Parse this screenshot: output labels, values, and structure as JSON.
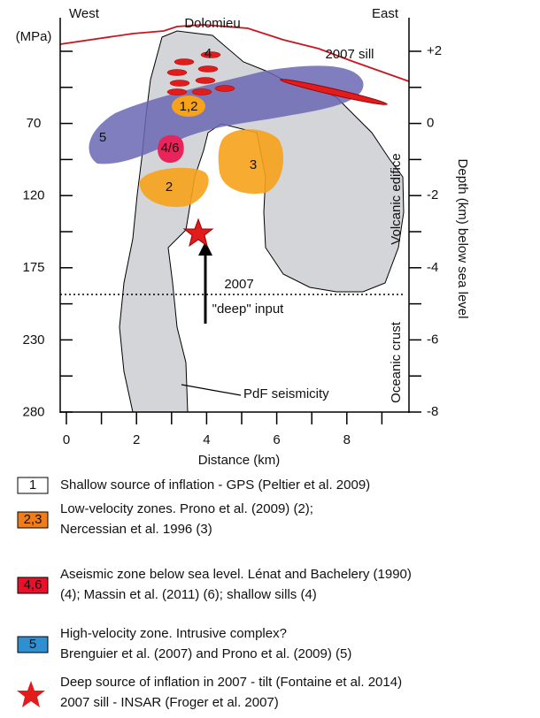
{
  "labels": {
    "west": "West",
    "east": "East",
    "dolomieu": "Dolomieu",
    "sill": "2007 sill",
    "volcanic_edifice": "Volcanic edifice",
    "oceanic_crust": "Oceanic crust",
    "year": "2007",
    "deep_input": "\"deep\" input",
    "pdf": "PdF seismicity"
  },
  "zones": {
    "z4": "4",
    "z12": "1,2",
    "z5": "5",
    "z46": "4/6",
    "z3": "3",
    "z2": "2"
  },
  "axes": {
    "left_unit": "(MPa)",
    "left_ticks": [
      "70",
      "120",
      "175",
      "230",
      "280"
    ],
    "right_label": "Depth (km) below sea level",
    "right_ticks": [
      "+2",
      "0",
      "-2",
      "-4",
      "-6",
      "-8"
    ],
    "x_label": "Distance (km)",
    "x_ticks": [
      "0",
      "2",
      "4",
      "6",
      "8"
    ]
  },
  "legend": [
    {
      "key": "1",
      "lines": [
        "Shallow source of inflation - GPS (Peltier et al. 2009)"
      ]
    },
    {
      "key": "2,3",
      "lines": [
        "Low-velocity zones. Prono et al. (2009) (2);",
        "Nercessian et al.  1996 (3)"
      ]
    },
    {
      "key": "4,6",
      "lines": [
        "Aseismic zone below sea level. Lénat and Bachelery (1990)",
        "(4); Massin et al. (2011) (6); shallow sills (4)"
      ]
    },
    {
      "key": "5",
      "lines": [
        "High-velocity zone. Intrusive complex?",
        "Brenguier et al. (2007) and Prono et al. (2009) (5)"
      ]
    },
    {
      "lines": [
        "Deep source of inflation in 2007 - tilt (Fontaine et al. 2014)",
        "2007 sill - INSAR (Froger et al. 2007)"
      ]
    }
  ]
}
